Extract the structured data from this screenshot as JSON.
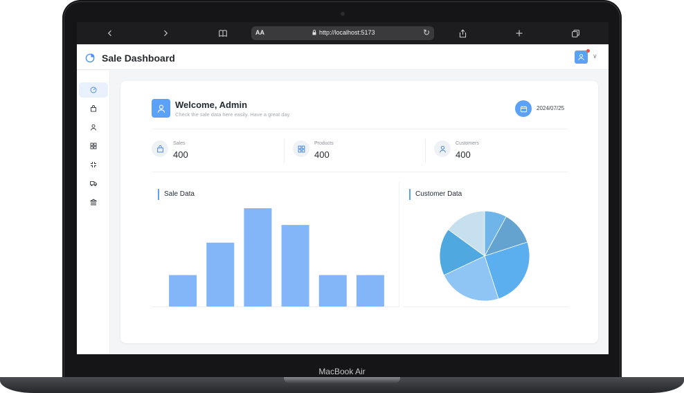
{
  "device": {
    "brand": "MacBook Air"
  },
  "browser": {
    "text_size_label": "AA",
    "url": "http://localhost:5173",
    "icons": [
      "back-icon",
      "forward-icon",
      "bookmarks-icon",
      "lock-icon",
      "reload-icon",
      "share-icon",
      "new-tab-icon",
      "tabs-icon"
    ]
  },
  "header": {
    "title": "Sale Dashboard",
    "has_notification": true
  },
  "sidebar": {
    "items": [
      {
        "icon": "dashboard-icon",
        "active": true
      },
      {
        "icon": "bag-icon",
        "active": false
      },
      {
        "icon": "user-icon",
        "active": false
      },
      {
        "icon": "grid-icon",
        "active": false
      },
      {
        "icon": "collapse-icon",
        "active": false
      },
      {
        "icon": "truck-icon",
        "active": false
      },
      {
        "icon": "bank-icon",
        "active": false
      }
    ]
  },
  "welcome": {
    "title": "Welcome, Admin",
    "subtitle": "Check the sale data here easily. Have a great day.",
    "date": "2024/07/25"
  },
  "stats": [
    {
      "label": "Sales",
      "value": "400",
      "icon": "bag-icon"
    },
    {
      "label": "Products",
      "value": "400",
      "icon": "grid-icon"
    },
    {
      "label": "Customers",
      "value": "400",
      "icon": "user-icon"
    }
  ],
  "sections": {
    "sale_title": "Sale Data",
    "customer_title": "Customer Data"
  },
  "colors": {
    "accent": "#5aa1f7",
    "bar": "#82b6f9",
    "pie": [
      "#c7e0f0",
      "#6fb5ea",
      "#64a3cf",
      "#5bafef",
      "#8ec5f5",
      "#4fa8df"
    ]
  },
  "chart_data": [
    {
      "type": "bar",
      "categories": [
        "",
        "",
        "",
        "",
        "",
        ""
      ],
      "values": [
        32,
        65,
        100,
        83,
        32,
        32
      ],
      "ylim": [
        0,
        100
      ],
      "title": "Sale Data",
      "xlabel": "",
      "ylabel": "",
      "grid": false
    },
    {
      "type": "pie",
      "values": [
        15,
        8,
        12,
        25,
        23,
        17
      ],
      "title": "Customer Data"
    }
  ]
}
